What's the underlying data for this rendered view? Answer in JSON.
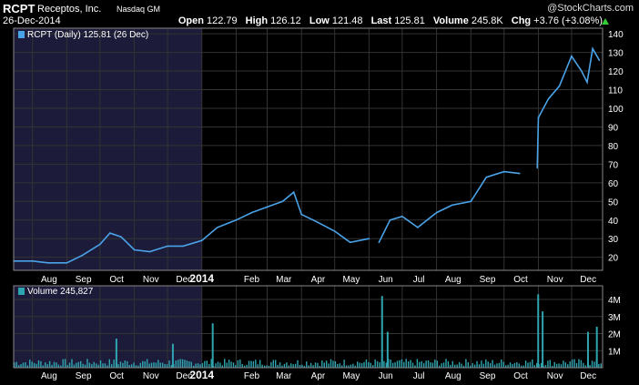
{
  "header": {
    "ticker": "RCPT",
    "company": "Receptos, Inc.",
    "exchange": "Nasdaq GM",
    "date": "26-Dec-2014",
    "watermark": "@StockCharts.com",
    "open_label": "Open",
    "open": "122.79",
    "high_label": "High",
    "high": "126.12",
    "low_label": "Low",
    "low": "121.48",
    "last_label": "Last",
    "last": "125.81",
    "volume_label": "Volume",
    "volume": "245.8K",
    "chg_label": "Chg",
    "chg": "+3.76 (+3.08%)",
    "chg_icon": "up-triangle-icon",
    "up_color": "#33cc33"
  },
  "colors": {
    "price_line": "#4aa3e8",
    "volume_bar": "#2fa5b0",
    "shade": "#1c1c3a",
    "grid": "#333333"
  },
  "chart_data": [
    {
      "type": "line",
      "legend": "RCPT (Daily) 125.81 (26 Dec)",
      "ylim": [
        13,
        143
      ],
      "yticks": [
        20,
        30,
        40,
        50,
        60,
        70,
        80,
        90,
        100,
        110,
        120,
        130,
        140
      ],
      "x_month_labels": [
        "Aug",
        "Sep",
        "Oct",
        "Nov",
        "Dec",
        "2014",
        "Feb",
        "Mar",
        "Apr",
        "May",
        "Jun",
        "Jul",
        "Aug",
        "Sep",
        "Oct",
        "Nov",
        "Dec"
      ],
      "x_month_bold": [
        false,
        false,
        false,
        false,
        false,
        true,
        false,
        false,
        false,
        false,
        false,
        false,
        false,
        false,
        false,
        false,
        false
      ],
      "shaded_period": "2013",
      "grid": true,
      "series": [
        {
          "x": [
            "2013-07-15",
            "2013-08-01",
            "2013-08-15",
            "2013-09-01",
            "2013-09-15",
            "2013-10-01",
            "2013-10-10",
            "2013-10-20",
            "2013-11-01",
            "2013-11-15",
            "2013-12-01",
            "2013-12-15",
            "2014-01-01",
            "2014-01-15",
            "2014-02-01",
            "2014-02-15",
            "2014-03-01",
            "2014-03-15",
            "2014-03-25",
            "2014-04-01",
            "2014-04-15",
            "2014-05-01",
            "2014-05-15",
            "2014-06-01",
            "2014-06-10",
            "2014-06-20",
            "2014-07-01",
            "2014-07-15",
            "2014-08-01",
            "2014-08-15",
            "2014-09-01",
            "2014-09-15",
            "2014-10-01",
            "2014-10-15",
            "2014-10-31",
            "2014-11-01",
            "2014-11-10",
            "2014-11-20",
            "2014-12-01",
            "2014-12-10",
            "2014-12-15",
            "2014-12-20",
            "2014-12-26"
          ],
          "y": [
            18,
            18,
            17,
            17,
            21,
            27,
            33,
            31,
            24,
            23,
            26,
            26,
            29,
            36,
            40,
            44,
            47,
            50,
            55,
            43,
            39,
            34,
            28,
            30,
            28,
            40,
            42,
            36,
            44,
            48,
            50,
            63,
            66,
            65,
            68,
            95,
            105,
            112,
            128,
            120,
            114,
            132,
            125.81
          ]
        }
      ]
    },
    {
      "type": "bar",
      "legend": "Volume 245,827",
      "ylim": [
        0,
        4800000
      ],
      "yticks": [
        1000000,
        2000000,
        3000000,
        4000000
      ],
      "ytick_labels": [
        "1M",
        "2M",
        "3M",
        "4M"
      ],
      "spikes": [
        {
          "x": "2013-10-15",
          "value": 1700000
        },
        {
          "x": "2013-12-05",
          "value": 1400000
        },
        {
          "x": "2014-01-10",
          "value": 2600000
        },
        {
          "x": "2014-06-12",
          "value": 4200000
        },
        {
          "x": "2014-06-17",
          "value": 2100000
        },
        {
          "x": "2014-10-31",
          "value": 4300000
        },
        {
          "x": "2014-11-04",
          "value": 3300000
        },
        {
          "x": "2014-12-15",
          "value": 2100000
        },
        {
          "x": "2014-12-23",
          "value": 2400000
        }
      ],
      "typical_volume": 350000
    }
  ]
}
